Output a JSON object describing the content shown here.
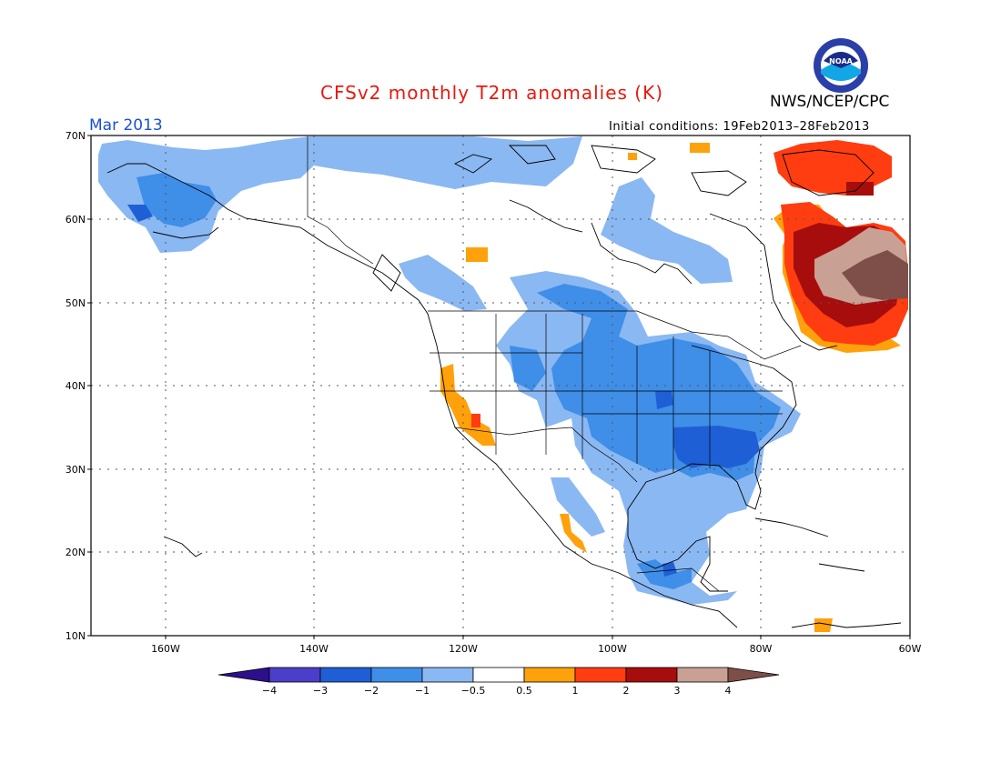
{
  "header": {
    "title": "CFSv2 monthly T2m anomalies (K)",
    "agency": "NWS/NCEP/CPC",
    "logo_text": "NOAA",
    "month": "Mar 2013",
    "initial_conditions": "Initial conditions: 19Feb2013–28Feb2013"
  },
  "map": {
    "lat_ticks": [
      "70N",
      "60N",
      "50N",
      "40N",
      "30N",
      "20N",
      "10N"
    ],
    "lon_ticks": [
      "160W",
      "140W",
      "120W",
      "100W",
      "80W",
      "60W"
    ],
    "lat_range": [
      10,
      70
    ],
    "lon_range": [
      -170,
      -60
    ]
  },
  "colorbar": {
    "labels": [
      "−4",
      "−3",
      "−2",
      "−1",
      "−0.5",
      "0.5",
      "1",
      "2",
      "3",
      "4"
    ],
    "colors": [
      "#2c0f8a",
      "#4b3ec8",
      "#1f5fd6",
      "#3f8ee8",
      "#8ab8f2",
      "#ffffff",
      "#ffa10a",
      "#ff3d10",
      "#a70d0d",
      "#c9a094",
      "#7d4f48"
    ]
  },
  "anomaly_regions": [
    {
      "name": "alaska-west-cold",
      "level": -1
    },
    {
      "name": "alaska-deep-cold",
      "level": -2
    },
    {
      "name": "arctic-canada-cold",
      "level": -1
    },
    {
      "name": "hudson-bay-cold",
      "level": -1
    },
    {
      "name": "central-canada-cold",
      "level": -2
    },
    {
      "name": "us-central-cold",
      "level": -2
    },
    {
      "name": "us-southeast-cold",
      "level": -3
    },
    {
      "name": "mexico-cold",
      "level": -1
    },
    {
      "name": "central-america-cold",
      "level": -2
    },
    {
      "name": "quebec-warm",
      "level": 1
    },
    {
      "name": "quebec-hot",
      "level": 2
    },
    {
      "name": "quebec-very-hot",
      "level": 3
    },
    {
      "name": "labrador-extreme",
      "level": 4
    },
    {
      "name": "greenland-warm",
      "level": 2
    },
    {
      "name": "california-warm",
      "level": 1
    },
    {
      "name": "nw-mexico-warm",
      "level": 0.5
    }
  ]
}
